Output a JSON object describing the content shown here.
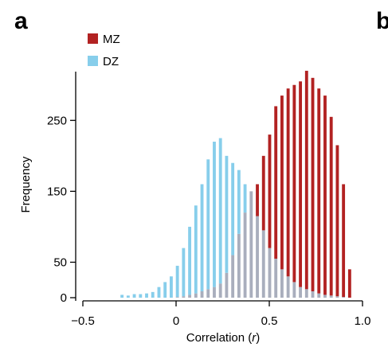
{
  "panel": {
    "letter": "a",
    "next_letter": "b"
  },
  "chart_data": {
    "type": "bar",
    "subtype": "overlaid-histogram",
    "xlabel_text": "Correlation (",
    "xlabel_var": "r",
    "xlabel_close": ")",
    "ylabel": "Frequency",
    "xlim": [
      -0.5,
      1.0
    ],
    "ylim": [
      0,
      330
    ],
    "xticks": [
      -0.5,
      0,
      0.5,
      1.0
    ],
    "xtick_labels": [
      "−0.5",
      "0",
      "0.5",
      "1.0"
    ],
    "yticks": [
      0,
      50,
      150,
      250
    ],
    "ytick_labels": [
      "0",
      "50",
      "150",
      "250"
    ],
    "legend_position": "top-left",
    "bin_width": 0.0165,
    "bins": [
      -0.29,
      -0.257,
      -0.224,
      -0.191,
      -0.158,
      -0.125,
      -0.092,
      -0.059,
      -0.026,
      0.007,
      0.04,
      0.073,
      0.106,
      0.139,
      0.172,
      0.205,
      0.238,
      0.271,
      0.304,
      0.337,
      0.37,
      0.403,
      0.436,
      0.469,
      0.502,
      0.535,
      0.568,
      0.601,
      0.634,
      0.667,
      0.7,
      0.733,
      0.766,
      0.799,
      0.832,
      0.865,
      0.898,
      0.931
    ],
    "series": [
      {
        "name": "MZ",
        "color": "#b22222",
        "values": [
          0,
          0,
          0,
          0,
          0,
          0,
          0,
          0,
          0,
          1,
          2,
          4,
          6,
          9,
          12,
          15,
          20,
          35,
          60,
          90,
          120,
          150,
          160,
          200,
          230,
          270,
          285,
          295,
          300,
          305,
          320,
          310,
          295,
          285,
          255,
          215,
          160,
          40
        ]
      },
      {
        "name": "DZ",
        "color": "#87ceeb",
        "values": [
          4,
          3,
          5,
          5,
          6,
          8,
          15,
          22,
          30,
          45,
          70,
          100,
          130,
          160,
          195,
          220,
          225,
          200,
          190,
          180,
          160,
          150,
          115,
          95,
          70,
          55,
          40,
          30,
          22,
          15,
          12,
          9,
          6,
          4,
          3,
          2,
          1,
          0
        ]
      }
    ],
    "overlap_color": "#a9aebd"
  }
}
